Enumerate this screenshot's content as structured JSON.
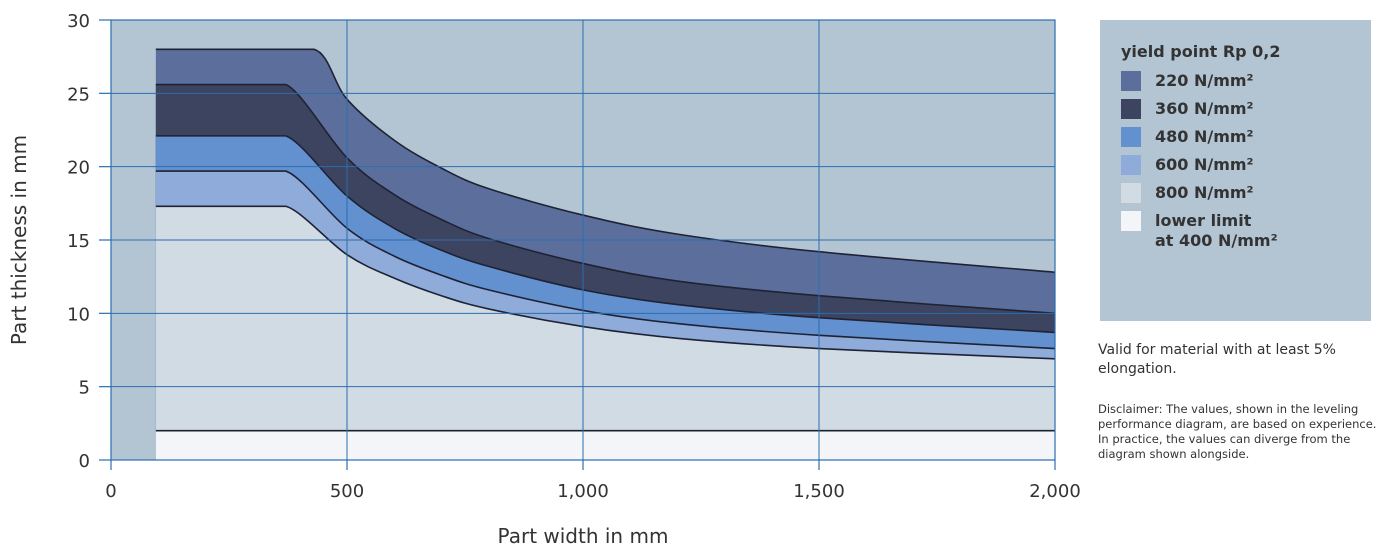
{
  "chart_data": {
    "type": "area",
    "title": "",
    "xlabel": "Part width in mm",
    "ylabel": "Part thickness in mm",
    "xlim": [
      0,
      2000
    ],
    "ylim": [
      0,
      30
    ],
    "x_ticks": [
      0,
      500,
      1000,
      1500,
      2000
    ],
    "x_tick_labels": [
      "0",
      "500",
      "1,000",
      "1,500",
      "2,000"
    ],
    "y_ticks": [
      0,
      5,
      10,
      15,
      20,
      25,
      30
    ],
    "y_tick_labels": [
      "0",
      "5",
      "10",
      "15",
      "20",
      "25",
      "30"
    ],
    "grid": true,
    "legend_position": "right",
    "background_color": "#b3c5d3",
    "lower_limit_value": 2,
    "start_width": 95,
    "series": [
      {
        "name": "220 N/mm²",
        "color": "#5c6e9b",
        "x": [
          95,
          430,
          500,
          600,
          700,
          800,
          1000,
          1200,
          1500,
          2000
        ],
        "y": [
          28,
          28,
          24.6,
          21.8,
          19.9,
          18.5,
          16.7,
          15.4,
          14.2,
          12.8
        ]
      },
      {
        "name": "360 N/mm²",
        "color": "#3d4460",
        "x": [
          95,
          370,
          500,
          600,
          700,
          800,
          1000,
          1200,
          1500,
          2000
        ],
        "y": [
          25.6,
          25.6,
          20.6,
          18.1,
          16.4,
          15.1,
          13.4,
          12.2,
          11.2,
          10.0
        ]
      },
      {
        "name": "480 N/mm²",
        "color": "#6390ce",
        "x": [
          95,
          370,
          500,
          600,
          700,
          800,
          1000,
          1200,
          1500,
          2000
        ],
        "y": [
          22.1,
          22.1,
          18.0,
          15.8,
          14.3,
          13.2,
          11.6,
          10.6,
          9.7,
          8.7
        ]
      },
      {
        "name": "600 N/mm²",
        "color": "#8eabd9",
        "x": [
          95,
          370,
          500,
          600,
          700,
          800,
          1000,
          1200,
          1500,
          2000
        ],
        "y": [
          19.7,
          19.7,
          15.8,
          13.9,
          12.6,
          11.6,
          10.2,
          9.3,
          8.5,
          7.6
        ]
      },
      {
        "name": "800 N/mm²",
        "color": "#d1dbe3",
        "x": [
          95,
          370,
          500,
          600,
          700,
          800,
          1000,
          1200,
          1500,
          2000
        ],
        "y": [
          17.3,
          17.3,
          14.0,
          12.4,
          11.2,
          10.3,
          9.1,
          8.3,
          7.6,
          6.9
        ]
      },
      {
        "name": "lower limit\nat 400 N/mm²",
        "color": "#f4f5f9",
        "x": [
          95,
          2000
        ],
        "y": [
          2,
          2
        ]
      }
    ]
  },
  "legend": {
    "title": "yield point Rp 0,2",
    "background": "#b3c5d3",
    "items": [
      {
        "label": "220 N/mm²",
        "color": "#5c6e9b"
      },
      {
        "label": "360 N/mm²",
        "color": "#3d4460"
      },
      {
        "label": "480 N/mm²",
        "color": "#6390ce"
      },
      {
        "label": "600 N/mm²",
        "color": "#8eabd9"
      },
      {
        "label": "800 N/mm²",
        "color": "#d1dbe3"
      },
      {
        "label": "lower limit\nat 400 N/mm²",
        "color": "#f4f5f9"
      }
    ]
  },
  "note": "Valid for material with at least 5% elongation.",
  "disclaimer": "Disclaimer: The values, shown in the leveling performance diagram, are based on experience. In practice, the values can diverge from the diagram shown alongside."
}
